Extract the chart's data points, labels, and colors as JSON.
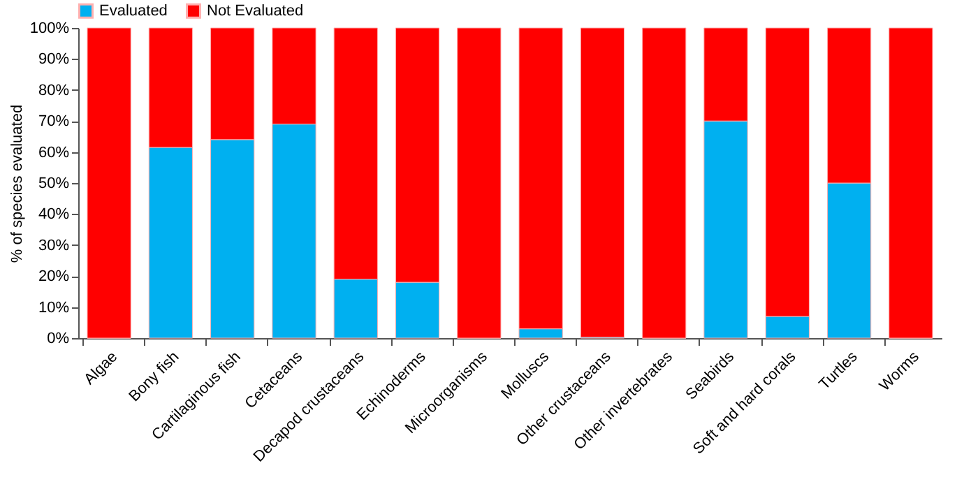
{
  "chart_data": {
    "type": "bar",
    "stacked": true,
    "ylabel": "% of species evaluated",
    "categories": [
      "Algae",
      "Bony fish",
      "Cartilaginous fish",
      "Cetaceans",
      "Decapod crustaceans",
      "Echinoderms",
      "Microorganisms",
      "Molluscs",
      "Other crustaceans",
      "Other invertebrates",
      "Seabirds",
      "Soft and hard corals",
      "Turtles",
      "Worms"
    ],
    "series": [
      {
        "name": "Evaluated",
        "color": "#00b0f0",
        "values": [
          0,
          61.5,
          64,
          69,
          19,
          18,
          0,
          3,
          0.3,
          0,
          70,
          7,
          50,
          0
        ]
      },
      {
        "name": "Not Evaluated",
        "color": "#ff0000",
        "values": [
          100,
          38.5,
          36,
          31,
          81,
          82,
          100,
          97,
          99.7,
          100,
          30,
          93,
          50,
          100
        ]
      }
    ],
    "ylim": [
      0,
      100
    ],
    "yticks": [
      {
        "value": 0,
        "label": "0%"
      },
      {
        "value": 10,
        "label": "10%"
      },
      {
        "value": 20,
        "label": "20%"
      },
      {
        "value": 30,
        "label": "30%"
      },
      {
        "value": 40,
        "label": "40%"
      },
      {
        "value": 50,
        "label": "50%"
      },
      {
        "value": 60,
        "label": "60%"
      },
      {
        "value": 70,
        "label": "70%"
      },
      {
        "value": 80,
        "label": "80%"
      },
      {
        "value": 90,
        "label": "90%"
      },
      {
        "value": 100,
        "label": "100%"
      }
    ],
    "grid": false,
    "legend": "top"
  }
}
